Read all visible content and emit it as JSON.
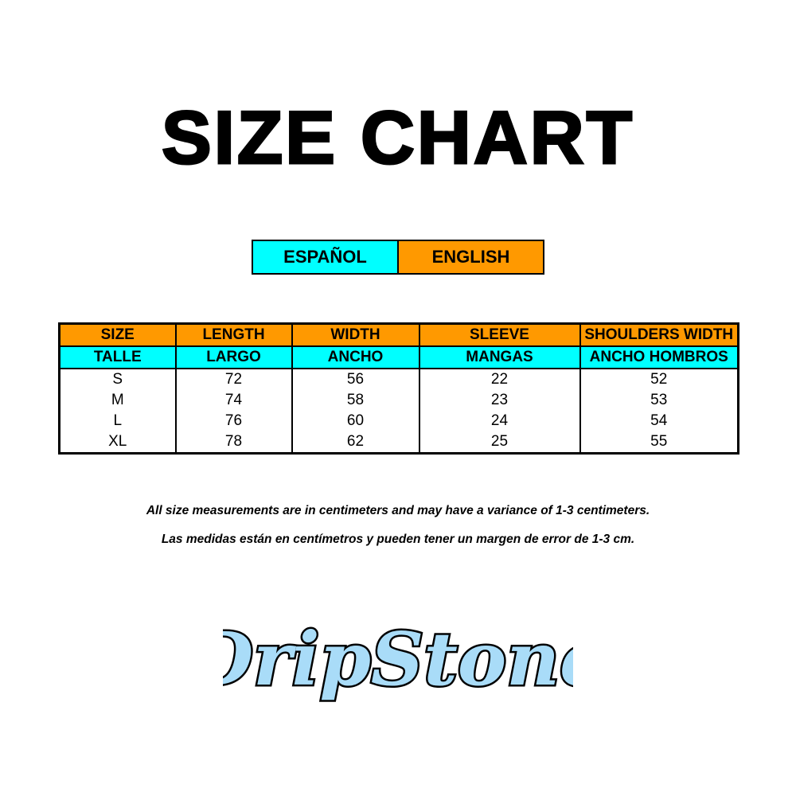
{
  "title": "SIZE CHART",
  "languages": {
    "spanish": "ESPAÑOL",
    "english": "ENGLISH",
    "spanish_color": "#00ffff",
    "english_color": "#ff9900"
  },
  "table": {
    "headers_en": [
      "SIZE",
      "LENGTH",
      "WIDTH",
      "SLEEVE",
      "SHOULDERS WIDTH"
    ],
    "headers_es": [
      "TALLE",
      "LARGO",
      "ANCHO",
      "MANGAS",
      "ANCHO HOMBROS"
    ],
    "rows": [
      [
        "S",
        "72",
        "56",
        "22",
        "52"
      ],
      [
        "M",
        "74",
        "58",
        "23",
        "53"
      ],
      [
        "L",
        "76",
        "60",
        "24",
        "54"
      ],
      [
        "XL",
        "78",
        "62",
        "25",
        "55"
      ]
    ]
  },
  "notes": {
    "english": "All size measurements are in centimeters and may have a variance of 1-3 centimeters.",
    "spanish": "Las medidas están en centímetros y pueden tener un margen de error de 1-3 cm."
  },
  "logo": {
    "text": "DripStone",
    "color": "#4aa8e8"
  }
}
